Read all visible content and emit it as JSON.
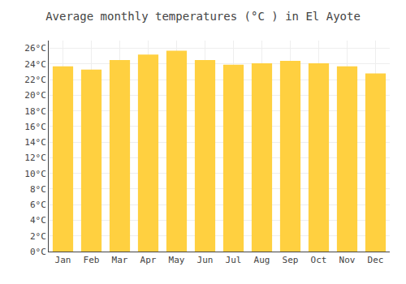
{
  "chart_data": {
    "type": "bar",
    "title": "Average monthly temperatures (°C ) in El Ayote",
    "categories": [
      "Jan",
      "Feb",
      "Mar",
      "Apr",
      "May",
      "Jun",
      "Jul",
      "Aug",
      "Sep",
      "Oct",
      "Nov",
      "Dec"
    ],
    "values": [
      23.7,
      23.3,
      24.5,
      25.2,
      25.7,
      24.5,
      23.9,
      24.1,
      24.4,
      24.1,
      23.7,
      22.8
    ],
    "color": "#FFD040",
    "ylim": [
      0,
      27
    ],
    "yticks": [
      {
        "value": 0,
        "label": "0°C"
      },
      {
        "value": 2,
        "label": "2°C"
      },
      {
        "value": 4,
        "label": "4°C"
      },
      {
        "value": 6,
        "label": "6°C"
      },
      {
        "value": 8,
        "label": "8°C"
      },
      {
        "value": 10,
        "label": "10°C"
      },
      {
        "value": 12,
        "label": "12°C"
      },
      {
        "value": 14,
        "label": "14°C"
      },
      {
        "value": 16,
        "label": "16°C"
      },
      {
        "value": 18,
        "label": "18°C"
      },
      {
        "value": 20,
        "label": "20°C"
      },
      {
        "value": 22,
        "label": "22°C"
      },
      {
        "value": 24,
        "label": "24°C"
      },
      {
        "value": 26,
        "label": "26°C"
      }
    ],
    "grid": true
  }
}
